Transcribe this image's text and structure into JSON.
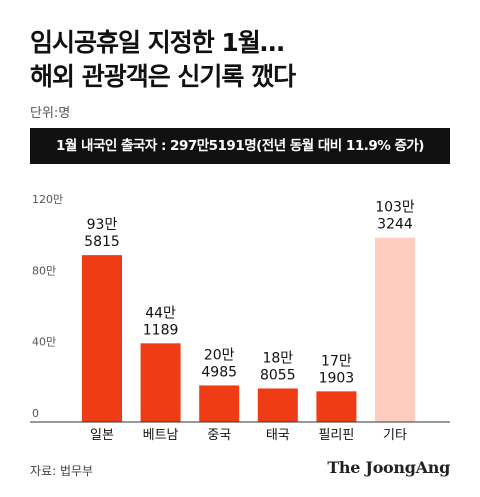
{
  "title_lines": [
    "임시공휴일 지정한 1월…",
    "해외 관광객은 신기록 깼다"
  ],
  "unit_label": "단위:명",
  "banner_text": "1월 내국인 출국자 : 297만5191명(전년 동월 대비 11.9% 증가)",
  "source_text": "자료: 법무부",
  "logo_text": "The JoongAng",
  "colors": {
    "primary_bar": "#f03c14",
    "other_bar": "#ffcdbf",
    "axis": "#333333",
    "grid": "#bbbbbb"
  },
  "chart_data": {
    "type": "bar",
    "categories": [
      "일본",
      "베트남",
      "중국",
      "태국",
      "필리핀",
      "기타"
    ],
    "values": [
      935815,
      441189,
      204985,
      188055,
      171903,
      1033244
    ],
    "value_labels": [
      [
        "93만",
        "5815"
      ],
      [
        "44만",
        "1189"
      ],
      [
        "20만",
        "4985"
      ],
      [
        "18만",
        "8055"
      ],
      [
        "17만",
        "1903"
      ],
      [
        "103만",
        "3244"
      ]
    ],
    "highlight": [
      true,
      true,
      true,
      true,
      true,
      false
    ],
    "ylim": [
      0,
      1200000
    ],
    "yticks": [
      0,
      400000,
      800000,
      1200000
    ],
    "ytick_labels": [
      "0",
      "40만",
      "80만",
      "120만"
    ],
    "grid": false
  }
}
